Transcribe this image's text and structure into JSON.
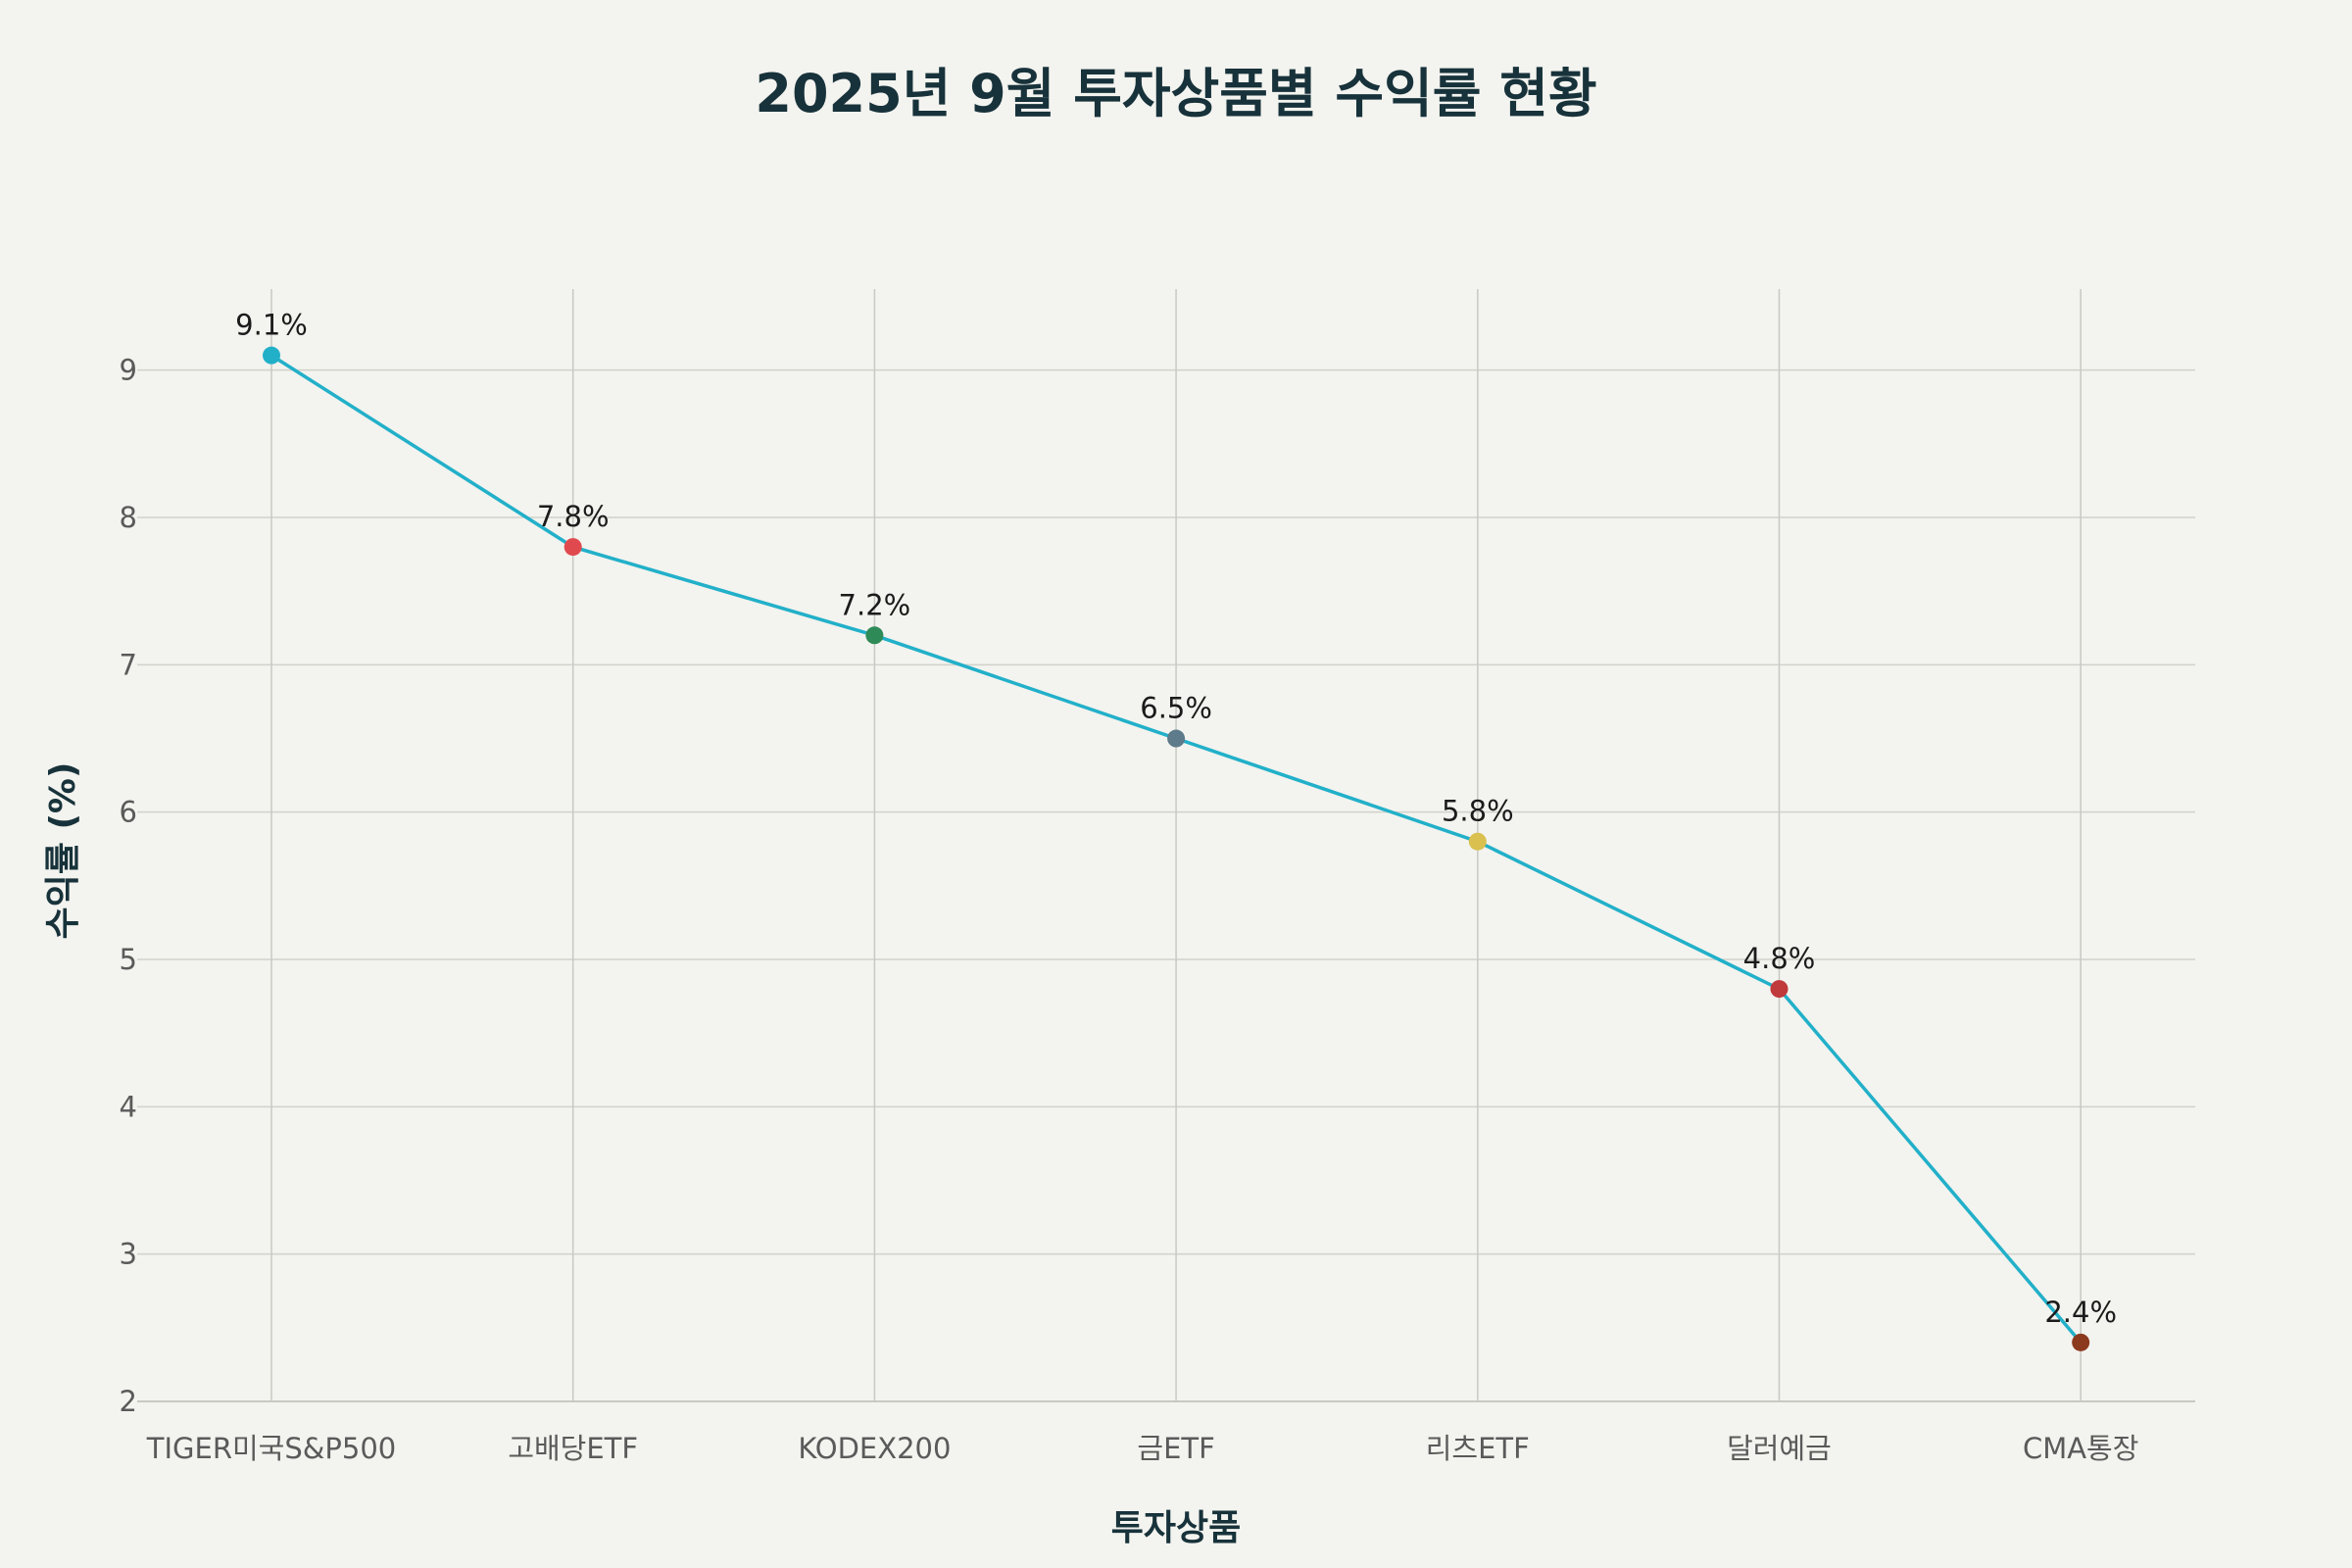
{
  "chart_data": {
    "type": "line",
    "title": "2025년 9월 투자상품별 수익률 현황",
    "xlabel": "투자상품",
    "ylabel": "수익률 (%)",
    "categories": [
      "TIGER미국S&P500",
      "고배당ETF",
      "KODEX200",
      "금ETF",
      "리츠ETF",
      "달러예금",
      "CMA통장"
    ],
    "values": [
      9.1,
      7.8,
      7.2,
      6.5,
      5.8,
      4.8,
      2.4
    ],
    "data_labels": [
      "9.1%",
      "7.8%",
      "7.2%",
      "6.5%",
      "5.8%",
      "4.8%",
      "2.4%"
    ],
    "point_colors": [
      "#22b0c9",
      "#e04a4f",
      "#2e8b57",
      "#5d7b8a",
      "#d9c04f",
      "#c0393b",
      "#8b3a1e"
    ],
    "line_color": "#22b0c9",
    "ylim": [
      2,
      9.55
    ],
    "yticks": [
      2,
      3,
      4,
      5,
      6,
      7,
      8,
      9
    ],
    "grid": true,
    "legend": "none"
  }
}
